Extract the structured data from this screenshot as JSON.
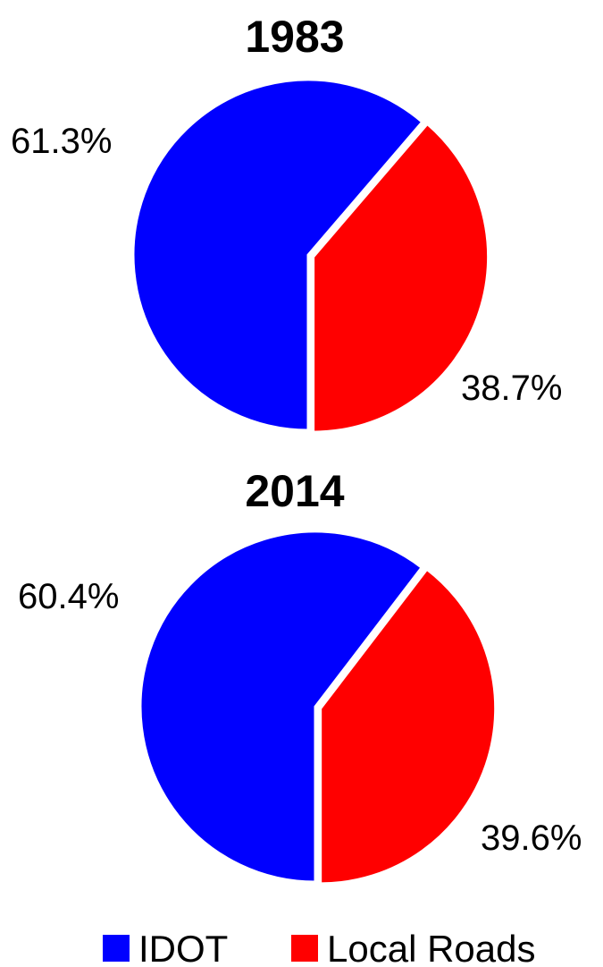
{
  "chart_data": [
    {
      "type": "pie",
      "title": "1983",
      "categories": [
        "IDOT",
        "Local Roads"
      ],
      "values": [
        61.3,
        38.7
      ],
      "labels": [
        "61.3%",
        "38.7%"
      ]
    },
    {
      "type": "pie",
      "title": "2014",
      "categories": [
        "IDOT",
        "Local Roads"
      ],
      "values": [
        60.4,
        39.6
      ],
      "labels": [
        "60.4%",
        "39.6%"
      ]
    }
  ],
  "legend": {
    "placement": "bottom",
    "items": [
      {
        "label": "IDOT",
        "color": "#0000ff"
      },
      {
        "label": "Local Roads",
        "color": "#ff0000"
      }
    ]
  },
  "colors": {
    "IDOT": "#0000ff",
    "Local Roads": "#ff0000"
  }
}
